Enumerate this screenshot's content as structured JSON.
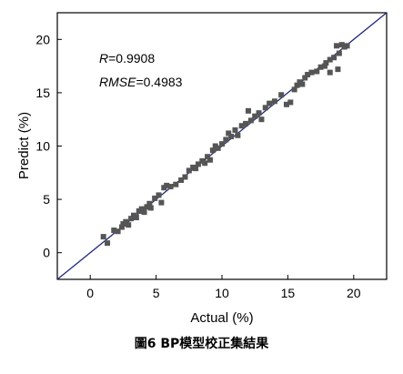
{
  "caption": "圖6 BP模型校正集結果",
  "chart_data": {
    "type": "scatter",
    "xlabel": "Actual (%)",
    "ylabel": "Predict (%)",
    "xlim": [
      -2.5,
      22.5
    ],
    "ylim": [
      -2.5,
      22.5
    ],
    "xticks": [
      0,
      5,
      10,
      15,
      20
    ],
    "yticks": [
      0,
      5,
      10,
      15,
      20
    ],
    "annotations": {
      "r_label": "R",
      "r_value": "=0.9908",
      "rmse_label": "RMSE",
      "rmse_value": "=0.4983"
    },
    "reference_line": {
      "from": [
        -2.5,
        -2.5
      ],
      "to": [
        22.5,
        22.5
      ],
      "color": "#1f2a80"
    },
    "marker_color": "#555555",
    "points": [
      [
        1.0,
        1.5
      ],
      [
        1.3,
        0.9
      ],
      [
        1.8,
        2.1
      ],
      [
        2.1,
        2.0
      ],
      [
        2.4,
        2.4
      ],
      [
        2.5,
        2.7
      ],
      [
        2.7,
        2.9
      ],
      [
        2.9,
        2.6
      ],
      [
        3.1,
        3.2
      ],
      [
        3.3,
        3.5
      ],
      [
        3.5,
        3.3
      ],
      [
        3.7,
        3.9
      ],
      [
        3.9,
        4.1
      ],
      [
        4.1,
        3.8
      ],
      [
        4.3,
        4.3
      ],
      [
        4.5,
        4.6
      ],
      [
        4.6,
        4.2
      ],
      [
        4.9,
        5.1
      ],
      [
        5.2,
        5.4
      ],
      [
        5.4,
        4.7
      ],
      [
        5.6,
        6.1
      ],
      [
        5.8,
        6.3
      ],
      [
        6.1,
        6.2
      ],
      [
        6.5,
        6.4
      ],
      [
        6.9,
        6.8
      ],
      [
        7.2,
        7.1
      ],
      [
        7.5,
        7.7
      ],
      [
        7.8,
        8.0
      ],
      [
        8.0,
        7.9
      ],
      [
        8.2,
        8.3
      ],
      [
        8.5,
        8.6
      ],
      [
        8.7,
        8.4
      ],
      [
        8.9,
        9.0
      ],
      [
        9.1,
        8.7
      ],
      [
        9.3,
        9.6
      ],
      [
        9.5,
        10.0
      ],
      [
        9.7,
        9.8
      ],
      [
        10.0,
        10.2
      ],
      [
        10.3,
        10.6
      ],
      [
        10.5,
        11.2
      ],
      [
        10.7,
        10.9
      ],
      [
        11.0,
        11.5
      ],
      [
        11.2,
        11.0
      ],
      [
        11.5,
        11.9
      ],
      [
        11.8,
        12.1
      ],
      [
        12.0,
        13.3
      ],
      [
        12.2,
        12.4
      ],
      [
        12.5,
        12.8
      ],
      [
        12.8,
        13.1
      ],
      [
        13.0,
        12.5
      ],
      [
        13.3,
        13.6
      ],
      [
        13.6,
        14.0
      ],
      [
        14.0,
        14.2
      ],
      [
        14.5,
        14.8
      ],
      [
        14.9,
        13.9
      ],
      [
        15.2,
        14.1
      ],
      [
        15.5,
        15.3
      ],
      [
        15.7,
        15.7
      ],
      [
        15.9,
        16.0
      ],
      [
        16.1,
        15.8
      ],
      [
        16.3,
        16.4
      ],
      [
        16.5,
        16.7
      ],
      [
        16.8,
        16.9
      ],
      [
        17.2,
        17.0
      ],
      [
        17.5,
        17.4
      ],
      [
        17.9,
        17.8
      ],
      [
        18.2,
        18.1
      ],
      [
        18.5,
        18.3
      ],
      [
        18.7,
        19.4
      ],
      [
        18.9,
        18.7
      ],
      [
        19.1,
        19.5
      ],
      [
        19.3,
        19.3
      ],
      [
        19.5,
        19.4
      ],
      [
        18.8,
        17.2
      ],
      [
        17.8,
        17.5
      ],
      [
        18.2,
        16.9
      ]
    ]
  }
}
